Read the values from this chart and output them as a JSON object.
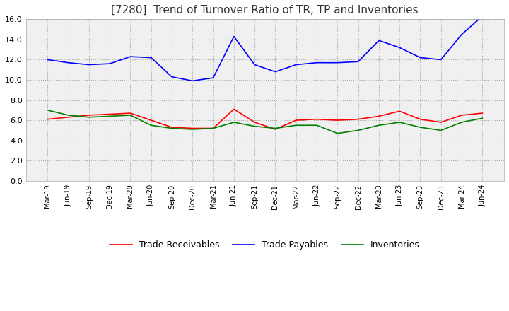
{
  "title": "[7280]  Trend of Turnover Ratio of TR, TP and Inventories",
  "x_labels": [
    "Mar-19",
    "Jun-19",
    "Sep-19",
    "Dec-19",
    "Mar-20",
    "Jun-20",
    "Sep-20",
    "Dec-20",
    "Mar-21",
    "Jun-21",
    "Sep-21",
    "Dec-21",
    "Mar-22",
    "Jun-22",
    "Sep-22",
    "Dec-22",
    "Mar-23",
    "Jun-23",
    "Sep-23",
    "Dec-23",
    "Mar-24",
    "Jun-24"
  ],
  "trade_receivables": [
    6.1,
    6.3,
    6.5,
    6.6,
    6.7,
    6.0,
    5.3,
    5.2,
    5.2,
    7.1,
    5.8,
    5.1,
    6.0,
    6.1,
    6.0,
    6.1,
    6.4,
    6.9,
    6.1,
    5.8,
    6.5,
    6.7
  ],
  "trade_payables": [
    12.0,
    11.7,
    11.5,
    11.6,
    12.3,
    12.2,
    10.3,
    9.9,
    10.2,
    14.3,
    11.5,
    10.8,
    11.5,
    11.7,
    11.7,
    11.8,
    13.9,
    13.2,
    12.2,
    12.0,
    14.5,
    16.3
  ],
  "inventories": [
    7.0,
    6.5,
    6.3,
    6.4,
    6.5,
    5.5,
    5.2,
    5.1,
    5.2,
    5.8,
    5.4,
    5.2,
    5.5,
    5.5,
    4.7,
    5.0,
    5.5,
    5.8,
    5.3,
    5.0,
    5.8,
    6.2
  ],
  "tr_color": "#ff0000",
  "tp_color": "#0000ff",
  "inv_color": "#008000",
  "ylim": [
    0.0,
    16.0
  ],
  "yticks": [
    0.0,
    2.0,
    4.0,
    6.0,
    8.0,
    10.0,
    12.0,
    14.0,
    16.0
  ],
  "legend_labels": [
    "Trade Receivables",
    "Trade Payables",
    "Inventories"
  ],
  "background_color": "#ffffff",
  "title_fontsize": 11,
  "plot_bg_color": "#f0f0f0"
}
